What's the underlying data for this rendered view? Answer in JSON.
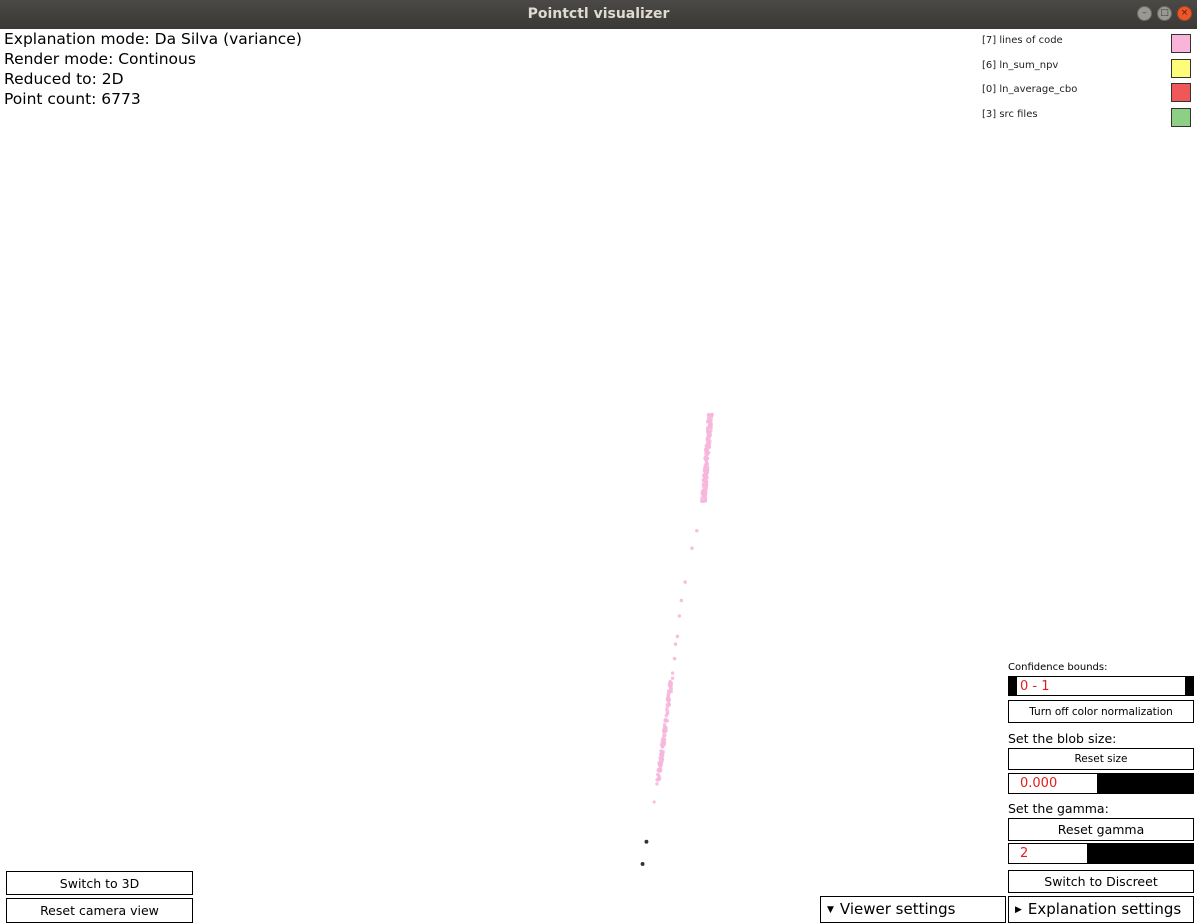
{
  "window": {
    "title": "Pointctl visualizer",
    "buttons": [
      "–",
      "□",
      "×"
    ]
  },
  "info": {
    "explanation_mode": "Explanation mode: Da Silva (variance)",
    "render_mode": "Render mode: Continous",
    "reduced_to": "Reduced to: 2D",
    "point_count": "Point count: 6773"
  },
  "legend": [
    {
      "label": "[7] lines of code",
      "color": "#f9b4da"
    },
    {
      "label": "[6] ln_sum_npv",
      "color": "#fdfd7a"
    },
    {
      "label": "[0] ln_average_cbo",
      "color": "#ef5758"
    },
    {
      "label": "[3] src files",
      "color": "#8ecf86"
    }
  ],
  "controls": {
    "confidence_label": "Confidence bounds:",
    "confidence_value": "0 - 1",
    "color_norm_button": "Turn off color normalization",
    "blob_label": "Set the blob size:",
    "reset_size_button": "Reset size",
    "blob_value": "0.000",
    "gamma_label": "Set the gamma:",
    "reset_gamma_button": "Reset gamma",
    "gamma_value": "2",
    "switch_discreet_button": "Switch to Discreet"
  },
  "bottom": {
    "switch_3d_button": "Switch to 3D",
    "reset_camera_button": "Reset camera view",
    "viewer_settings_tab": "Viewer settings",
    "explanation_settings_tab": "Explanation settings"
  },
  "scatter": {
    "point_color": "#f7b6dc",
    "outlier_color": "#333333"
  }
}
